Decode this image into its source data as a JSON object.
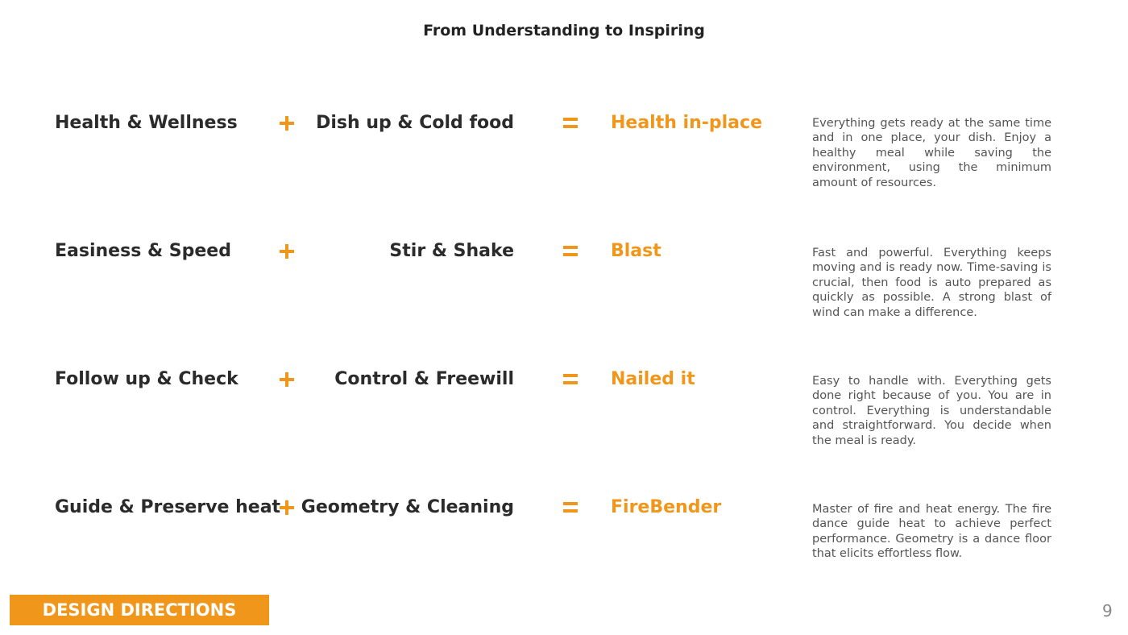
{
  "header": {
    "title": "From Understanding to Inspiring"
  },
  "rows": [
    {
      "left": "Health & Wellness",
      "right": "Dish up & Cold food",
      "result": "Health in-place",
      "description": "Everything gets ready at the same time and in one place, your dish. Enjoy a healthy meal while saving the environment, using the minimum amount of resources."
    },
    {
      "left": "Easiness & Speed",
      "right": "Stir & Shake",
      "result": "Blast",
      "description": "Fast and powerful. Everything keeps moving and is ready now. Time-saving is crucial, then food is auto prepared as quickly as possible. A strong blast of wind can make a difference."
    },
    {
      "left": "Follow up & Check",
      "right": "Control & Freewill",
      "result": "Nailed it",
      "description": "Easy to handle with. Everything gets done right because of you. You are in control. Everything is understandable and straightforward. You decide when the meal is ready."
    },
    {
      "left": "Guide & Preserve heat",
      "right": "Geometry & Cleaning",
      "result": "FireBender",
      "description": "Master of fire and heat energy. The fire dance guide heat to achieve perfect performance. Geometry is a dance floor that elicits effortless flow."
    }
  ],
  "footer": {
    "section": "DESIGN DIRECTIONS",
    "page_number": "9"
  }
}
